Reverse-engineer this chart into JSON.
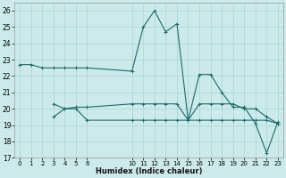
{
  "xlabel": "Humidex (Indice chaleur)",
  "bg_color": "#cceaea",
  "grid_color": "#aad4d4",
  "line_color": "#1a6b6b",
  "xlim": [
    -0.5,
    23.5
  ],
  "ylim": [
    17,
    26.5
  ],
  "yticks": [
    17,
    18,
    19,
    20,
    21,
    22,
    23,
    24,
    25,
    26
  ],
  "xticks": [
    0,
    1,
    2,
    3,
    4,
    5,
    6,
    10,
    11,
    12,
    13,
    14,
    15,
    16,
    17,
    18,
    19,
    20,
    21,
    22,
    23
  ],
  "lines": [
    {
      "x": [
        0,
        1,
        2,
        3,
        4,
        5,
        6,
        10,
        11,
        12,
        13,
        14,
        15,
        16,
        17,
        18,
        19,
        20,
        21,
        22,
        23
      ],
      "y": [
        22.7,
        22.7,
        22.5,
        22.5,
        22.5,
        22.5,
        22.5,
        22.3,
        25.0,
        26.0,
        24.7,
        25.2,
        19.3,
        22.1,
        22.1,
        21.0,
        20.1,
        20.1,
        19.1,
        17.3,
        19.2
      ]
    },
    {
      "x": [
        3,
        4,
        5,
        6,
        10,
        11,
        12,
        13,
        14,
        15,
        16,
        17,
        18,
        19,
        20,
        21,
        22,
        23
      ],
      "y": [
        20.3,
        20.0,
        20.1,
        20.1,
        20.3,
        20.3,
        20.3,
        20.3,
        20.3,
        19.3,
        20.3,
        20.3,
        20.3,
        20.3,
        20.0,
        20.0,
        19.5,
        19.1
      ]
    },
    {
      "x": [
        3,
        4,
        5,
        6,
        10,
        11,
        12,
        13,
        14,
        15,
        16,
        17,
        18,
        19,
        20,
        21,
        22,
        23
      ],
      "y": [
        19.5,
        20.0,
        20.0,
        19.3,
        19.3,
        19.3,
        19.3,
        19.3,
        19.3,
        19.3,
        19.3,
        19.3,
        19.3,
        19.3,
        19.3,
        19.3,
        19.3,
        19.1
      ]
    }
  ]
}
